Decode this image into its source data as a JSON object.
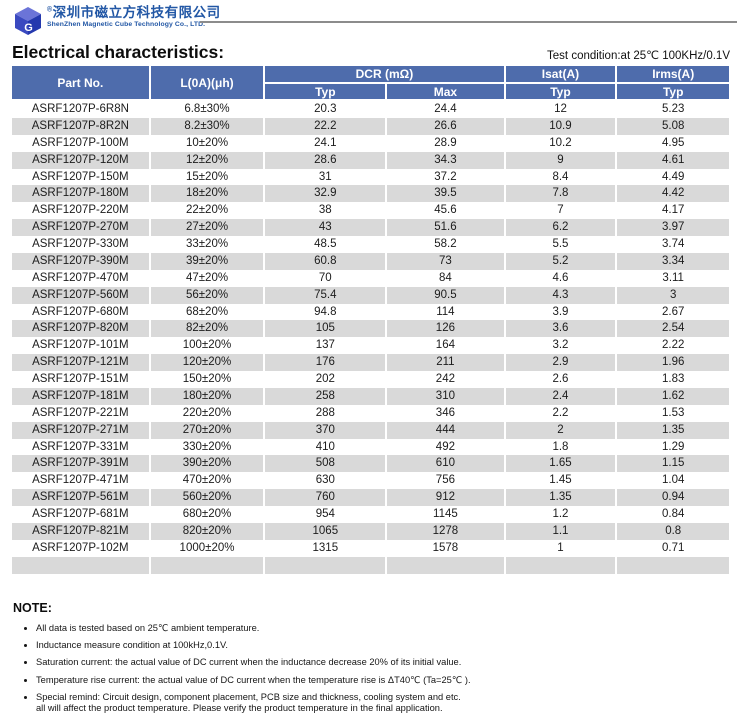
{
  "brand": {
    "registered_mark": "®",
    "name_cn": "深圳市磁立方科技有限公司",
    "name_en": "ShenZhen Magnetic Cube Technology Co., LTD."
  },
  "page": {
    "title": "Electrical characteristics:",
    "test_condition": "Test condition:at 25℃ 100KHz/0.1V"
  },
  "table": {
    "columns": {
      "part_no": "Part No.",
      "inductance": "L(0A)(μh)",
      "dcr_group": "DCR (mΩ)",
      "isat_group": "Isat(A)",
      "irms_group": "Irms(A)",
      "dcr_typ": "Typ",
      "dcr_max": "Max",
      "isat_typ": "Typ",
      "irms_typ": "Typ"
    },
    "rows": [
      [
        "ASRF1207P-6R8N",
        "6.8±30%",
        "20.3",
        "24.4",
        "12",
        "5.23"
      ],
      [
        "ASRF1207P-8R2N",
        "8.2±30%",
        "22.2",
        "26.6",
        "10.9",
        "5.08"
      ],
      [
        "ASRF1207P-100M",
        "10±20%",
        "24.1",
        "28.9",
        "10.2",
        "4.95"
      ],
      [
        "ASRF1207P-120M",
        "12±20%",
        "28.6",
        "34.3",
        "9",
        "4.61"
      ],
      [
        "ASRF1207P-150M",
        "15±20%",
        "31",
        "37.2",
        "8.4",
        "4.49"
      ],
      [
        "ASRF1207P-180M",
        "18±20%",
        "32.9",
        "39.5",
        "7.8",
        "4.42"
      ],
      [
        "ASRF1207P-220M",
        "22±20%",
        "38",
        "45.6",
        "7",
        "4.17"
      ],
      [
        "ASRF1207P-270M",
        "27±20%",
        "43",
        "51.6",
        "6.2",
        "3.97"
      ],
      [
        "ASRF1207P-330M",
        "33±20%",
        "48.5",
        "58.2",
        "5.5",
        "3.74"
      ],
      [
        "ASRF1207P-390M",
        "39±20%",
        "60.8",
        "73",
        "5.2",
        "3.34"
      ],
      [
        "ASRF1207P-470M",
        "47±20%",
        "70",
        "84",
        "4.6",
        "3.11"
      ],
      [
        "ASRF1207P-560M",
        "56±20%",
        "75.4",
        "90.5",
        "4.3",
        "3"
      ],
      [
        "ASRF1207P-680M",
        "68±20%",
        "94.8",
        "114",
        "3.9",
        "2.67"
      ],
      [
        "ASRF1207P-820M",
        "82±20%",
        "105",
        "126",
        "3.6",
        "2.54"
      ],
      [
        "ASRF1207P-101M",
        "100±20%",
        "137",
        "164",
        "3.2",
        "2.22"
      ],
      [
        "ASRF1207P-121M",
        "120±20%",
        "176",
        "211",
        "2.9",
        "1.96"
      ],
      [
        "ASRF1207P-151M",
        "150±20%",
        "202",
        "242",
        "2.6",
        "1.83"
      ],
      [
        "ASRF1207P-181M",
        "180±20%",
        "258",
        "310",
        "2.4",
        "1.62"
      ],
      [
        "ASRF1207P-221M",
        "220±20%",
        "288",
        "346",
        "2.2",
        "1.53"
      ],
      [
        "ASRF1207P-271M",
        "270±20%",
        "370",
        "444",
        "2",
        "1.35"
      ],
      [
        "ASRF1207P-331M",
        "330±20%",
        "410",
        "492",
        "1.8",
        "1.29"
      ],
      [
        "ASRF1207P-391M",
        "390±20%",
        "508",
        "610",
        "1.65",
        "1.15"
      ],
      [
        "ASRF1207P-471M",
        "470±20%",
        "630",
        "756",
        "1.45",
        "1.04"
      ],
      [
        "ASRF1207P-561M",
        "560±20%",
        "760",
        "912",
        "1.35",
        "0.94"
      ],
      [
        "ASRF1207P-681M",
        "680±20%",
        "954",
        "1145",
        "1.2",
        "0.84"
      ],
      [
        "ASRF1207P-821M",
        "820±20%",
        "1065",
        "1278",
        "1.1",
        "0.8"
      ],
      [
        "ASRF1207P-102M",
        "1000±20%",
        "1315",
        "1578",
        "1",
        "0.71"
      ],
      [
        "",
        "",
        "",
        "",
        "",
        ""
      ]
    ]
  },
  "note": {
    "heading": "NOTE:",
    "items": [
      "All data is tested based on 25℃ ambient temperature.",
      "Inductance measure condition at 100kHz,0.1V.",
      "Saturation current: the actual value of DC current when the inductance decrease 20% of its initial value.",
      "Temperature rise current: the actual value of DC current when the temperature rise is ΔT40℃ (Ta=25℃ ).",
      "Special remind: Circuit design, component placement, PCB size and thickness, cooling system and etc.\nall will affect the product temperature. Please verify the product temperature in the final application."
    ]
  },
  "colors": {
    "header_blue": "#4e6cac",
    "row_stripe": "#d9d9d9",
    "brand_blue": "#2257a5",
    "divider_gray": "#8c8c8c",
    "header_text": "#ffffff"
  }
}
